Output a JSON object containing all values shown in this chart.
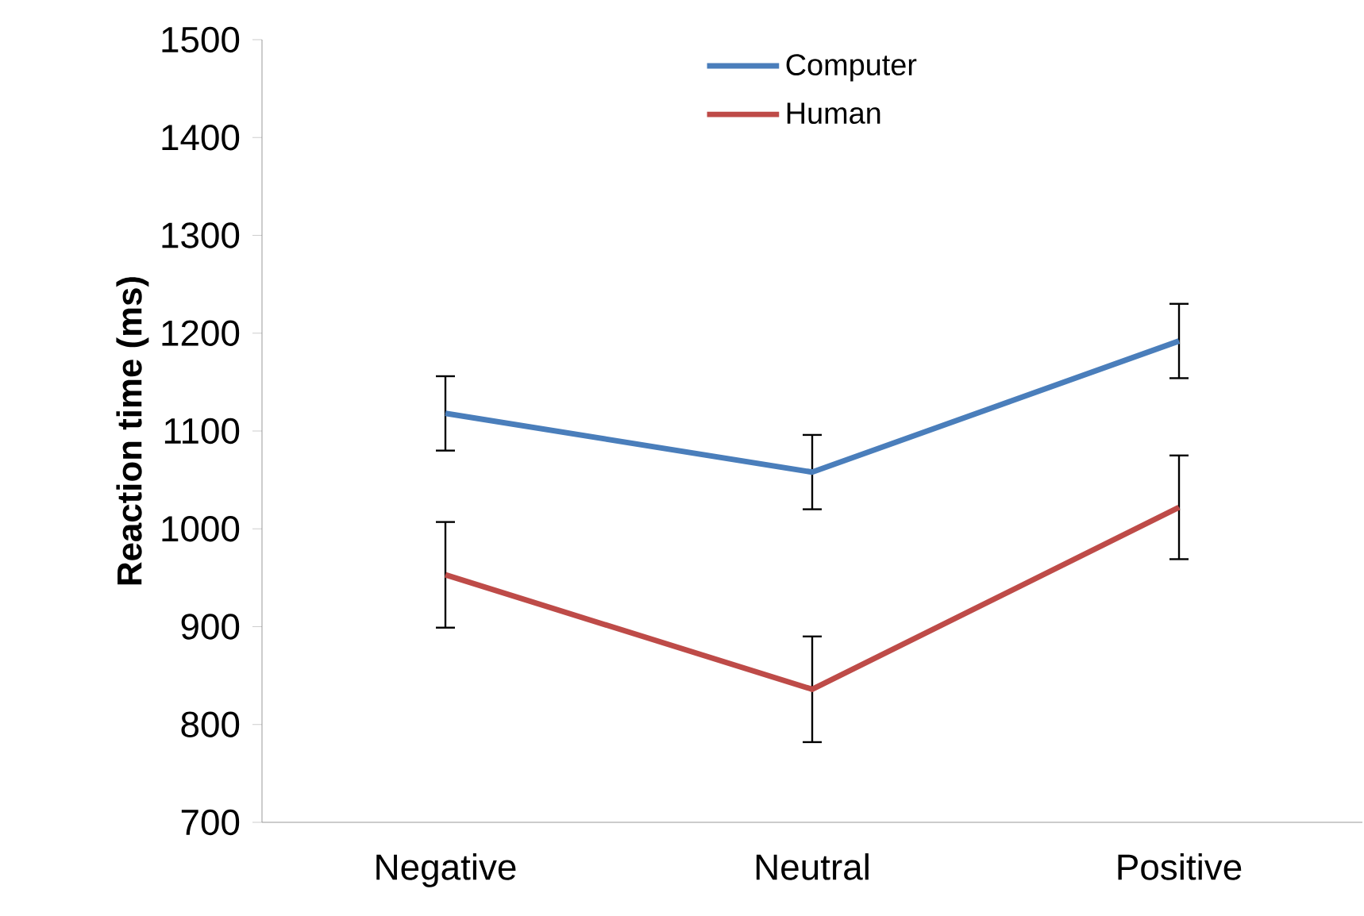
{
  "chart_data": {
    "type": "line",
    "ylabel": "Reaction time (ms)",
    "categories": [
      "Negative",
      "Neutral",
      "Positive"
    ],
    "series": [
      {
        "name": "Computer",
        "color": "#4a7ebb",
        "values": [
          1118,
          1058,
          1192
        ],
        "errors": [
          38,
          38,
          38
        ]
      },
      {
        "name": "Human",
        "color": "#be4b48",
        "values": [
          953,
          836,
          1022
        ],
        "errors": [
          54,
          54,
          53
        ]
      }
    ],
    "ylim": [
      700,
      1500
    ],
    "yticks": [
      700,
      800,
      900,
      1000,
      1100,
      1200,
      1300,
      1400,
      1500
    ],
    "grid": false,
    "legend": "top",
    "line_style": "solid"
  }
}
